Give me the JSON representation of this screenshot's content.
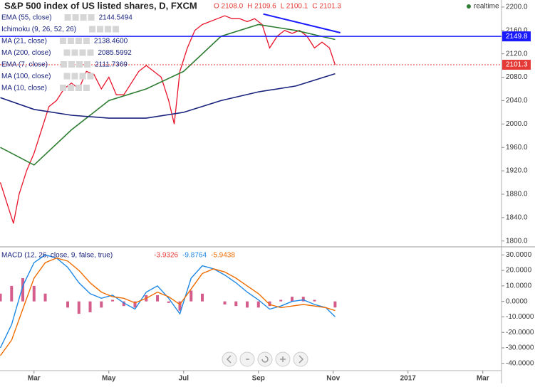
{
  "chart_data": [
    {
      "type": "line",
      "title": "S&P 500 index of US listed shares, D, FXCM",
      "ohlc": [
        "O 2108.0",
        "H 2109.6",
        "L 2100.1",
        "C 2101.3"
      ],
      "status": "realtime",
      "indicators": [
        {
          "label": "EMA (55, close)",
          "value": "2144.5494"
        },
        {
          "label": "Ichimoku (9, 26, 52, 26)",
          "value": ""
        },
        {
          "label": "MA (21, close)",
          "value": "2138.4600"
        },
        {
          "label": "MA (200, close)",
          "value": "2085.5992"
        },
        {
          "label": "EMA (7, close)",
          "value": "2111.7369"
        },
        {
          "label": "MA (100, close)",
          "value": ""
        },
        {
          "label": "MA (10, close)",
          "value": ""
        }
      ],
      "series": [
        {
          "color": "#e8142b",
          "x": [
            2.1,
            2.3,
            2.45,
            2.6,
            2.8,
            3.0,
            3.2,
            3.4,
            3.6,
            3.8,
            4.0,
            4.2,
            4.4,
            4.6,
            4.8,
            5.0,
            5.2,
            5.4,
            5.6,
            5.8,
            6.0,
            6.2,
            6.4,
            6.6,
            6.75,
            6.9,
            7.1,
            7.3,
            7.5,
            7.7,
            7.9,
            8.1,
            8.3,
            8.5,
            8.7,
            8.9,
            9.1,
            9.3,
            9.5,
            9.7,
            9.9,
            10.1,
            10.3,
            10.5,
            10.7,
            10.9,
            11.05
          ],
          "values": [
            1900,
            1860,
            1830,
            1880,
            1920,
            1950,
            1990,
            2030,
            2040,
            2060,
            2070,
            2060,
            2090,
            2085,
            2060,
            2080,
            2050,
            2050,
            2070,
            2090,
            2100,
            2090,
            2080,
            2040,
            2000,
            2090,
            2130,
            2160,
            2170,
            2175,
            2180,
            2185,
            2180,
            2180,
            2175,
            2180,
            2170,
            2130,
            2150,
            2160,
            2155,
            2160,
            2150,
            2130,
            2140,
            2130,
            2101.3
          ]
        },
        {
          "color": "#2e7d32",
          "x": [
            2.1,
            3,
            4,
            5,
            6,
            7,
            8,
            9,
            10,
            11.05
          ],
          "values": [
            1960,
            1930,
            1990,
            2040,
            2060,
            2090,
            2150,
            2170,
            2160,
            2144.5
          ]
        },
        {
          "color": "#1a237e",
          "x": [
            2.1,
            3,
            4,
            5,
            6,
            7,
            8,
            9,
            10,
            11.05
          ],
          "values": [
            2045,
            2025,
            2015,
            2010,
            2010,
            2020,
            2040,
            2055,
            2065,
            2086
          ]
        }
      ],
      "price_lines": [
        {
          "value": 2149.8,
          "color": "#1a1aff",
          "style": "solid"
        },
        {
          "value": 2101.3,
          "color": "#e53935",
          "style": "dotted"
        }
      ],
      "trendline": {
        "x": [
          9.13,
          11.19
        ],
        "y": [
          2188,
          2156
        ],
        "color": "#1a1aff"
      },
      "xlim": [
        2.09,
        15.5
      ],
      "ylim": [
        1790,
        2212
      ],
      "yticks": [
        {
          "value": 2200,
          "label": "2200.0"
        },
        {
          "value": 2160,
          "label": "2160.0"
        },
        {
          "value": 2120,
          "label": "2120.0"
        },
        {
          "value": 2080,
          "label": "2080.0"
        },
        {
          "value": 2040,
          "label": "2040.0"
        },
        {
          "value": 2000,
          "label": "2000.0"
        },
        {
          "value": 1960,
          "label": "1960.0"
        },
        {
          "value": 1920,
          "label": "1920.0"
        },
        {
          "value": 1880,
          "label": "1880.0"
        },
        {
          "value": 1840,
          "label": "1840.0"
        },
        {
          "value": 1800,
          "label": "1800.0"
        }
      ]
    },
    {
      "type": "macd",
      "title": "MACD (12, 26, close, 9, false, true)",
      "readout": [
        {
          "value": -3.9326,
          "color": "#e53935"
        },
        {
          "value": -9.8764,
          "color": "#1e88e5"
        },
        {
          "value": -5.9438,
          "color": "#ef6c00"
        }
      ],
      "x": [
        2.1,
        2.4,
        2.7,
        3.0,
        3.3,
        3.6,
        3.9,
        4.2,
        4.5,
        4.8,
        5.1,
        5.4,
        5.7,
        6.0,
        6.3,
        6.6,
        6.9,
        7.2,
        7.5,
        7.8,
        8.1,
        8.4,
        8.7,
        9.0,
        9.3,
        9.6,
        9.9,
        10.2,
        10.5,
        10.8,
        11.05
      ],
      "series": [
        {
          "kind": "histogram",
          "color": "#c2185b",
          "values": [
            5,
            10,
            15,
            10,
            5,
            0,
            -4,
            -8,
            -7,
            -4,
            1,
            -3,
            -4,
            4,
            4,
            -1,
            -6,
            7,
            5,
            0,
            -2,
            -3,
            -4,
            -4,
            -3,
            1,
            3,
            3,
            1,
            0,
            -3.9326
          ]
        },
        {
          "kind": "line",
          "color": "#1e88e5",
          "values": [
            -30,
            -15,
            10,
            25,
            30,
            28,
            22,
            12,
            5,
            2,
            4,
            -1,
            -5,
            6,
            10,
            2,
            -8,
            15,
            23,
            21,
            17,
            12,
            6,
            1,
            -5,
            -3,
            0,
            1,
            -2,
            -4,
            -9.8764
          ]
        },
        {
          "kind": "line",
          "color": "#ef6c00",
          "values": [
            -35,
            -25,
            -5,
            15,
            25,
            28,
            26,
            20,
            12,
            6,
            3,
            2,
            -1,
            2,
            6,
            3,
            -2,
            8,
            18,
            21,
            19,
            15,
            10,
            5,
            -2,
            -4,
            -3,
            -2,
            -3,
            -4,
            -5.9438
          ]
        }
      ],
      "xlim": [
        2.09,
        15.5
      ],
      "ylim": [
        -44.7,
        35.2
      ],
      "xticks": [
        {
          "value": 3,
          "label": "Mar"
        },
        {
          "value": 5,
          "label": "May"
        },
        {
          "value": 7,
          "label": "Jul"
        },
        {
          "value": 9,
          "label": "Sep"
        },
        {
          "value": 11,
          "label": "Nov"
        },
        {
          "value": 13,
          "label": "2017"
        },
        {
          "value": 15,
          "label": "Mar"
        }
      ],
      "yticks": [
        {
          "value": 30,
          "label": "30.0000"
        },
        {
          "value": 20,
          "label": "20.0000"
        },
        {
          "value": 10,
          "label": "10.0000"
        },
        {
          "value": 0,
          "label": "0.0000"
        },
        {
          "value": -10,
          "label": "-10.0000"
        },
        {
          "value": -20,
          "label": "-20.0000"
        },
        {
          "value": -30,
          "label": "-30.0000"
        },
        {
          "value": -40,
          "label": "-40.0000"
        }
      ]
    }
  ]
}
